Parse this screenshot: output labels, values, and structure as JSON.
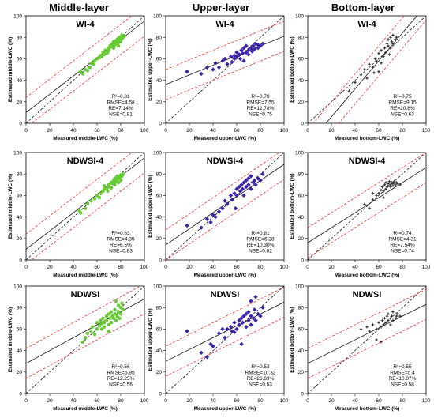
{
  "columns": [
    "Middle-layer",
    "Upper-layer",
    "Bottom-layer"
  ],
  "style": {
    "point_colors": {
      "middle": "#66cc33",
      "upper": "#3b22aa",
      "bottom": "#333333"
    },
    "fit_line_color": "#111111",
    "one_to_one_color": "#111111",
    "interval_color": "#ff2a2a"
  },
  "chart_data": [
    {
      "type": "scatter",
      "layer": "middle",
      "title": "WI-4",
      "xlabel": "Measured middle-LWC (%)",
      "ylabel": "Estimated middle-LWC (%)",
      "xlim": [
        0,
        100
      ],
      "ylim": [
        0,
        100
      ],
      "ticks": [
        "0",
        "20",
        "40",
        "60",
        "80",
        "100"
      ],
      "stats": [
        "R²=0.81",
        "RMSE=4.58",
        "RE=7.14%",
        "NSE=0.81"
      ],
      "fit": {
        "slope": 0.85,
        "intercept": 10
      },
      "x": [
        46,
        48,
        50,
        52,
        54,
        55,
        57,
        58,
        60,
        62,
        63,
        64,
        65,
        66,
        67,
        68,
        70,
        70,
        71,
        72,
        72,
        73,
        74,
        74,
        75,
        75,
        76,
        76,
        77,
        77,
        78,
        78,
        79,
        79,
        80,
        80,
        81,
        81,
        82,
        83,
        78,
        74,
        69
      ],
      "y": [
        48,
        46,
        50,
        49,
        52,
        56,
        55,
        58,
        60,
        61,
        63,
        62,
        66,
        64,
        68,
        65,
        70,
        68,
        72,
        71,
        73,
        74,
        72,
        76,
        75,
        73,
        77,
        74,
        76,
        78,
        75,
        79,
        77,
        80,
        78,
        76,
        79,
        82,
        80,
        81,
        72,
        70,
        66
      ]
    },
    {
      "type": "scatter",
      "layer": "upper",
      "title": "WI-4",
      "xlabel": "Measured upper-LWC (%)",
      "ylabel": "Estimated upper-LWC (%)",
      "xlim": [
        0,
        100
      ],
      "ylim": [
        0,
        100
      ],
      "ticks": [
        "0",
        "20",
        "40",
        "60",
        "80",
        "100"
      ],
      "stats": [
        "R²=0.78",
        "RMSE=7.55",
        "RE=12.78%",
        "NSE=0.75"
      ],
      "fit": {
        "slope": 0.45,
        "intercept": 36
      },
      "x": [
        18,
        30,
        35,
        40,
        42,
        45,
        48,
        50,
        52,
        55,
        56,
        58,
        60,
        60,
        62,
        63,
        64,
        65,
        66,
        68,
        68,
        70,
        70,
        72,
        73,
        74,
        75,
        76,
        78,
        78,
        80,
        82,
        66,
        58
      ],
      "y": [
        48,
        46,
        52,
        50,
        56,
        52,
        58,
        60,
        55,
        62,
        57,
        60,
        66,
        62,
        64,
        60,
        68,
        65,
        70,
        66,
        72,
        68,
        64,
        70,
        67,
        72,
        69,
        74,
        70,
        73,
        72,
        74,
        58,
        63
      ]
    },
    {
      "type": "scatter",
      "layer": "bottom",
      "title": "WI-4",
      "xlabel": "Measured bottom-LWC (%)",
      "ylabel": "Estimated bottom-LWC (%)",
      "xlim": [
        0,
        100
      ],
      "ylim": [
        0,
        100
      ],
      "ticks": [
        "0",
        "20",
        "40",
        "60",
        "80",
        "100"
      ],
      "stats": [
        "R²=0.75",
        "RMSE=9.15",
        "RE=20.8%",
        "NSE=0.63"
      ],
      "fit": {
        "slope": 1.3,
        "intercept": -20
      },
      "x": [
        35,
        40,
        45,
        48,
        50,
        52,
        55,
        57,
        58,
        60,
        62,
        62,
        64,
        65,
        66,
        67,
        68,
        68,
        70,
        70,
        71,
        72,
        72,
        74,
        75,
        56,
        60,
        69
      ],
      "y": [
        30,
        38,
        45,
        50,
        42,
        55,
        52,
        60,
        58,
        65,
        56,
        68,
        62,
        70,
        66,
        74,
        72,
        78,
        70,
        80,
        76,
        74,
        82,
        78,
        80,
        47,
        48,
        64
      ]
    },
    {
      "type": "scatter",
      "layer": "middle",
      "title": "NDWSI-4",
      "xlabel": "Measured middle-LWC (%)",
      "ylabel": "Estimated middle-LWC (%)",
      "xlim": [
        0,
        100
      ],
      "ylim": [
        0,
        100
      ],
      "ticks": [
        "0",
        "20",
        "40",
        "60",
        "80",
        "100"
      ],
      "stats": [
        "R²=0.83",
        "RMSE=4.35",
        "RE=6.5%",
        "NSE=0.83"
      ],
      "fit": {
        "slope": 0.85,
        "intercept": 10
      },
      "x": [
        45,
        46,
        50,
        52,
        55,
        58,
        60,
        62,
        63,
        65,
        66,
        68,
        70,
        70,
        72,
        72,
        73,
        74,
        75,
        75,
        76,
        77,
        77,
        78,
        78,
        79,
        80,
        80,
        81,
        82,
        74,
        69,
        66
      ],
      "y": [
        46,
        44,
        48,
        52,
        55,
        57,
        60,
        58,
        62,
        64,
        66,
        66,
        68,
        70,
        72,
        67,
        71,
        74,
        70,
        76,
        73,
        75,
        78,
        72,
        77,
        76,
        74,
        79,
        78,
        80,
        71,
        64,
        69
      ]
    },
    {
      "type": "scatter",
      "layer": "upper",
      "title": "NDWSI-4",
      "xlabel": "Measured upper-LWC (%)",
      "ylabel": "Estimated upper-LWC (%)",
      "xlim": [
        0,
        100
      ],
      "ylim": [
        0,
        100
      ],
      "ticks": [
        "0",
        "20",
        "40",
        "60",
        "80",
        "100"
      ],
      "stats": [
        "R²=0.81",
        "RMSE=6.28",
        "RE=10.30%",
        "NSE=0.82"
      ],
      "fit": {
        "slope": 0.75,
        "intercept": 14
      },
      "x": [
        18,
        30,
        35,
        38,
        40,
        42,
        45,
        48,
        50,
        52,
        55,
        56,
        58,
        60,
        60,
        62,
        63,
        64,
        65,
        66,
        68,
        68,
        70,
        70,
        72,
        72,
        74,
        75,
        76,
        78,
        80,
        82,
        59,
        66
      ],
      "y": [
        32,
        30,
        38,
        35,
        42,
        40,
        45,
        48,
        55,
        52,
        60,
        56,
        62,
        66,
        60,
        68,
        64,
        70,
        66,
        72,
        68,
        74,
        70,
        76,
        66,
        78,
        72,
        74,
        70,
        76,
        74,
        80,
        48,
        60
      ]
    },
    {
      "type": "scatter",
      "layer": "bottom",
      "title": "NDWSI-4",
      "xlabel": "Measured bottom-LWC (%)",
      "ylabel": "Estimated bottom-LWC (%)",
      "xlim": [
        0,
        100
      ],
      "ylim": [
        0,
        100
      ],
      "ticks": [
        "0",
        "20",
        "40",
        "60",
        "80",
        "100"
      ],
      "stats": [
        "R²=0.74",
        "RMSE=4.31",
        "RE=7.54%",
        "NSE=0.74"
      ],
      "fit": {
        "slope": 0.7,
        "intercept": 16
      },
      "x": [
        48,
        52,
        55,
        58,
        60,
        62,
        63,
        64,
        65,
        66,
        66,
        67,
        68,
        68,
        69,
        70,
        70,
        71,
        72,
        72,
        73,
        74,
        75,
        76,
        78,
        55,
        64
      ],
      "y": [
        52,
        48,
        56,
        60,
        62,
        65,
        68,
        64,
        70,
        66,
        72,
        68,
        71,
        69,
        73,
        70,
        68,
        72,
        71,
        69,
        73,
        70,
        72,
        71,
        70,
        62,
        58
      ]
    },
    {
      "type": "scatter",
      "layer": "middle",
      "title": "NDWSI",
      "xlabel": "Measured middle-LWC (%)",
      "ylabel": "Estimated middle-LWC (%)",
      "xlim": [
        0,
        100
      ],
      "ylim": [
        0,
        100
      ],
      "ticks": [
        "0",
        "20",
        "40",
        "60",
        "80",
        "100"
      ],
      "stats": [
        "R²=0.56",
        "RMSE=6.95",
        "RE=12.25%",
        "NSE=0.56"
      ],
      "fit": {
        "slope": 0.6,
        "intercept": 28
      },
      "x": [
        48,
        50,
        52,
        55,
        56,
        58,
        60,
        60,
        62,
        63,
        64,
        65,
        66,
        66,
        68,
        68,
        70,
        70,
        71,
        72,
        72,
        73,
        74,
        75,
        75,
        76,
        77,
        78,
        78,
        79,
        80,
        80,
        81,
        82,
        70,
        64,
        76
      ],
      "y": [
        48,
        52,
        56,
        58,
        62,
        55,
        66,
        60,
        63,
        68,
        65,
        70,
        62,
        66,
        72,
        68,
        74,
        64,
        70,
        76,
        66,
        72,
        70,
        74,
        78,
        68,
        72,
        76,
        82,
        70,
        74,
        80,
        84,
        78,
        58,
        60,
        86
      ]
    },
    {
      "type": "scatter",
      "layer": "upper",
      "title": "NDWSI",
      "xlabel": "Measured upper-LWC (%)",
      "ylabel": "Estimated upper-LWC (%)",
      "xlim": [
        0,
        100
      ],
      "ylim": [
        0,
        100
      ],
      "ticks": [
        "0",
        "20",
        "40",
        "60",
        "80",
        "100"
      ],
      "stats": [
        "R²=0.53",
        "RMSE=10.32",
        "RE=26.69%",
        "NSE=0.53"
      ],
      "fit": {
        "slope": 0.55,
        "intercept": 30
      },
      "x": [
        18,
        30,
        35,
        38,
        40,
        45,
        48,
        50,
        52,
        55,
        56,
        58,
        60,
        62,
        62,
        64,
        65,
        66,
        68,
        68,
        70,
        70,
        72,
        72,
        74,
        75,
        76,
        78,
        80,
        82,
        64,
        72,
        76,
        58
      ],
      "y": [
        58,
        38,
        34,
        46,
        44,
        56,
        60,
        52,
        60,
        62,
        58,
        66,
        60,
        68,
        64,
        70,
        66,
        72,
        62,
        74,
        68,
        76,
        64,
        72,
        70,
        78,
        68,
        74,
        72,
        80,
        46,
        86,
        90,
        57
      ]
    },
    {
      "type": "scatter",
      "layer": "bottom",
      "title": "NDWSI",
      "xlabel": "Measured bottom-LWC (%)",
      "ylabel": "Estimated bottom-LWC (%)",
      "xlim": [
        0,
        100
      ],
      "ylim": [
        0,
        100
      ],
      "ticks": [
        "0",
        "20",
        "40",
        "60",
        "80",
        "100"
      ],
      "stats": [
        "R²=0.55",
        "RMSE=5.4",
        "RE=10.07%",
        "NSE=0.58"
      ],
      "fit": {
        "slope": 0.55,
        "intercept": 28
      },
      "x": [
        45,
        50,
        52,
        55,
        58,
        60,
        62,
        63,
        64,
        65,
        66,
        67,
        68,
        68,
        70,
        70,
        71,
        72,
        72,
        74,
        75,
        76,
        78,
        62,
        58
      ],
      "y": [
        60,
        62,
        58,
        64,
        60,
        66,
        62,
        68,
        64,
        70,
        66,
        72,
        68,
        74,
        70,
        64,
        72,
        68,
        76,
        70,
        72,
        74,
        72,
        48,
        50
      ]
    }
  ]
}
